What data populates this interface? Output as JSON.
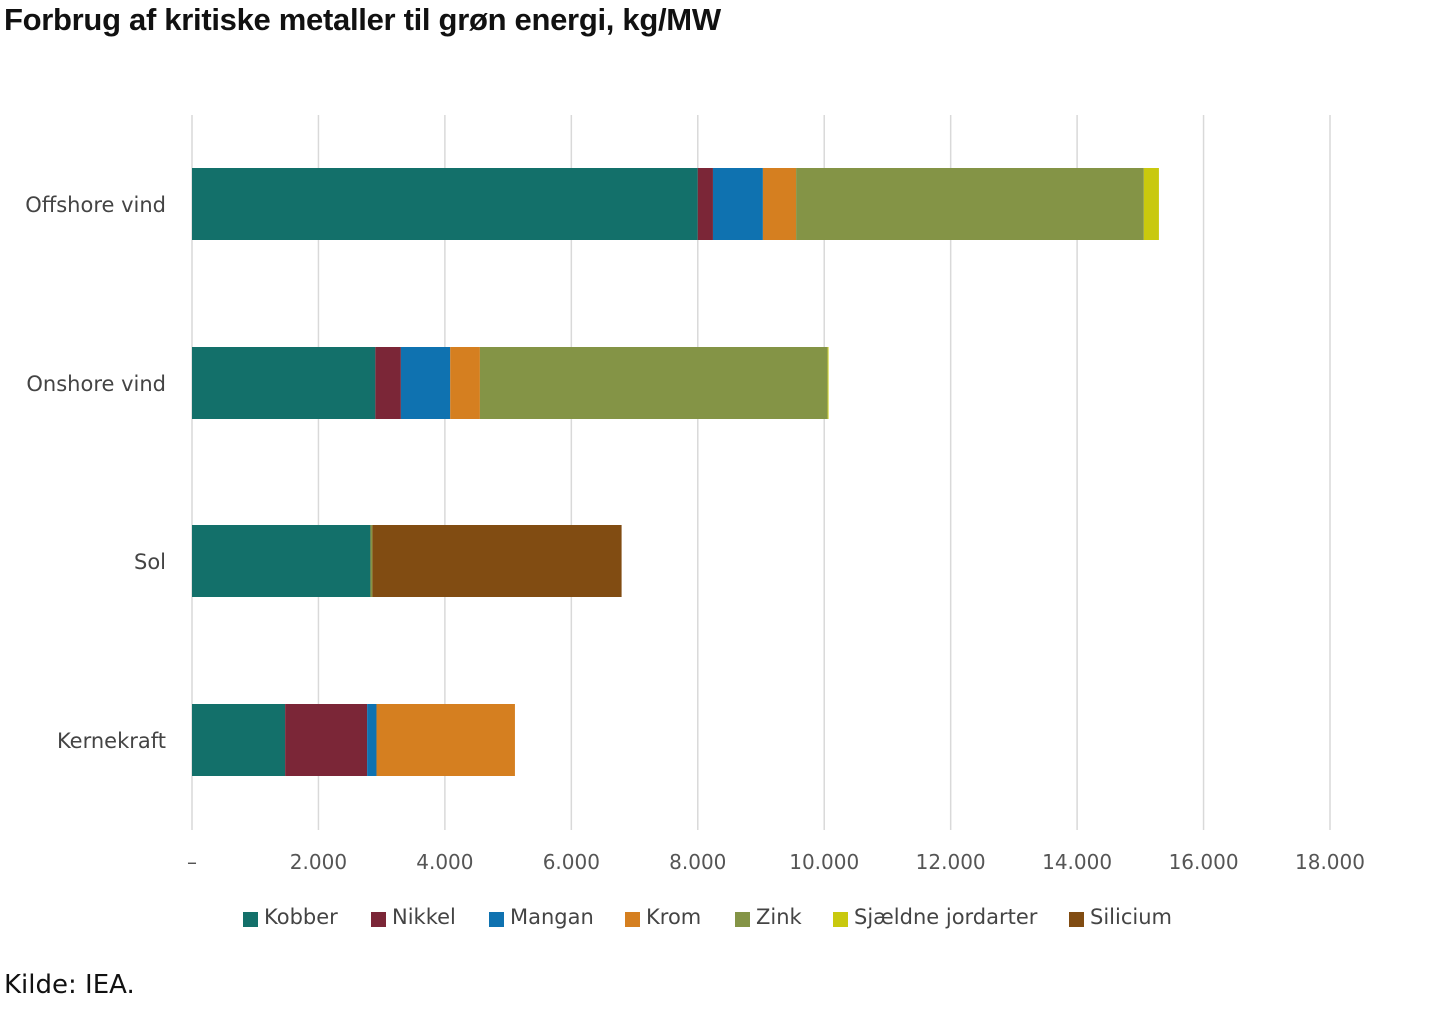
{
  "title": "Forbrug af kritiske metaller til grøn energi, kg/MW",
  "source": "Kilde: IEA.",
  "chart_data": {
    "type": "bar",
    "orientation": "horizontal",
    "stacked": true,
    "title": "Forbrug af kritiske metaller til grøn energi, kg/MW",
    "xlabel": "",
    "ylabel": "",
    "xlim": [
      0,
      18000
    ],
    "grid": true,
    "legend_position": "bottom",
    "categories": [
      "Offshore vind",
      "Onshore vind",
      "Sol",
      "Kernekraft"
    ],
    "tick_values": [
      0,
      2000,
      4000,
      6000,
      8000,
      10000,
      12000,
      14000,
      16000,
      18000
    ],
    "tick_labels": [
      "–",
      "2.000",
      "4.000",
      "6.000",
      "8.000",
      "10.000",
      "12.000",
      "14.000",
      "16.000",
      "18.000"
    ],
    "series": [
      {
        "name": "Kobber",
        "color": "#13706a",
        "values": [
          8000,
          2900,
          2822,
          1473
        ]
      },
      {
        "name": "Nikkel",
        "color": "#7b2637",
        "values": [
          240,
          404,
          1,
          1297
        ]
      },
      {
        "name": "Mangan",
        "color": "#0f72b0",
        "values": [
          790,
          780,
          0,
          148
        ]
      },
      {
        "name": "Krom",
        "color": "#d57f20",
        "values": [
          525,
          470,
          0,
          2190
        ]
      },
      {
        "name": "Zink",
        "color": "#849446",
        "values": [
          5500,
          5500,
          30,
          0
        ]
      },
      {
        "name": "Sjældne jordarter",
        "color": "#c9c90e",
        "values": [
          239,
          14,
          0,
          0
        ]
      },
      {
        "name": "Silicium",
        "color": "#814c12",
        "values": [
          0,
          0,
          3942,
          0
        ]
      }
    ]
  }
}
